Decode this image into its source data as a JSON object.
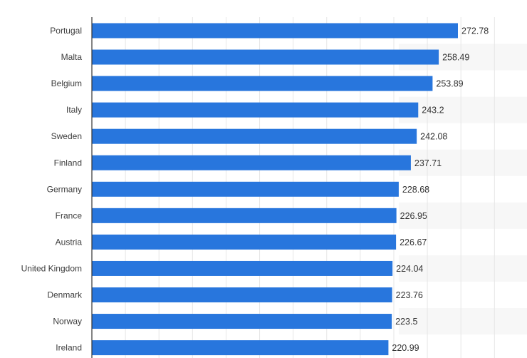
{
  "chart_data": {
    "type": "bar",
    "orientation": "horizontal",
    "categories": [
      "Portugal",
      "Malta",
      "Belgium",
      "Italy",
      "Sweden",
      "Finland",
      "Germany",
      "France",
      "Austria",
      "United Kingdom",
      "Denmark",
      "Norway",
      "Ireland"
    ],
    "values": [
      272.78,
      258.49,
      253.89,
      243.2,
      242.08,
      237.71,
      228.68,
      226.95,
      226.67,
      224.04,
      223.76,
      223.5,
      220.99
    ],
    "data_labels": [
      "272.78",
      "258.49",
      "253.89",
      "243.2",
      "242.08",
      "237.71",
      "228.68",
      "226.95",
      "226.67",
      "224.04",
      "223.76",
      "223.5",
      "220.99"
    ],
    "xlim": [
      0,
      325
    ],
    "grid": true,
    "legend": "none",
    "colors": {
      "bar": "#2876dd",
      "grid": "#e6e6e6",
      "row_band": "#f7f7f7",
      "axis": "#333333"
    }
  }
}
